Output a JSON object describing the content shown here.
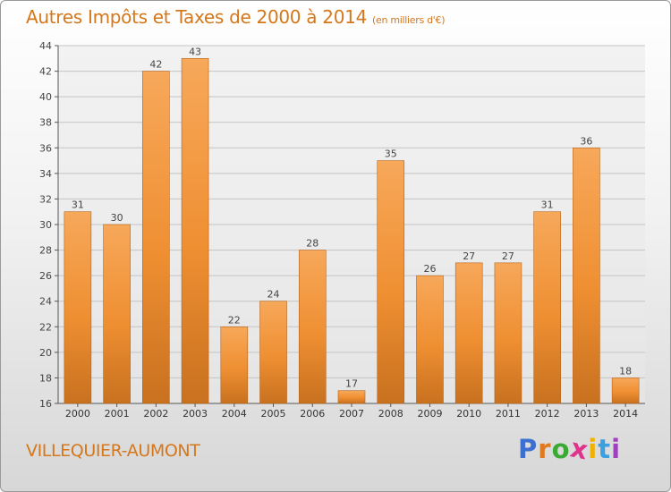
{
  "chart_data": {
    "type": "bar",
    "title": "Autres Impôts et Taxes de 2000 à 2014",
    "unit": "(en milliers d'€)",
    "categories": [
      "2000",
      "2001",
      "2002",
      "2003",
      "2004",
      "2005",
      "2006",
      "2007",
      "2008",
      "2009",
      "2010",
      "2011",
      "2012",
      "2013",
      "2014"
    ],
    "values": [
      31,
      30,
      42,
      43,
      22,
      24,
      28,
      17,
      35,
      26,
      27,
      27,
      31,
      36,
      18
    ],
    "ylim": [
      16,
      44
    ],
    "yticks": [
      16,
      18,
      20,
      22,
      24,
      26,
      28,
      30,
      32,
      34,
      36,
      38,
      40,
      42,
      44
    ],
    "grid": true,
    "bar_color": "#ef8f32",
    "bar_color_light": "#f7a85a",
    "bar_color_dark": "#c8711f"
  },
  "commune": "VILLEQUIER-AUMONT",
  "logo": {
    "letters": [
      "P",
      "r",
      "o",
      "x",
      "i",
      "t",
      "i"
    ],
    "colors": [
      "#3c6fd0",
      "#e07a1e",
      "#3aaa35",
      "#e0338b",
      "#f0b100",
      "#3c9fe0",
      "#a040c0"
    ]
  }
}
